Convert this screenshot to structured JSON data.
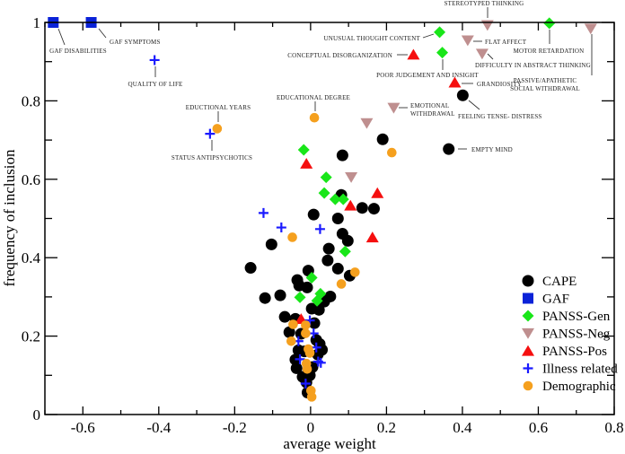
{
  "chart_data": {
    "type": "scatter",
    "xlabel": "average weight",
    "ylabel": "frequency of inclusion",
    "xlim": [
      -0.7,
      0.8
    ],
    "ylim": [
      0,
      1
    ],
    "xticks": [
      "-0.6",
      "-0.4",
      "-0.2",
      "0",
      "0.2",
      "0.4",
      "0.6",
      "0.8"
    ],
    "xtick_values": [
      -0.6,
      -0.4,
      -0.2,
      0,
      0.2,
      0.4,
      0.6,
      0.8
    ],
    "yticks": [
      "0",
      "0.2",
      "0.4",
      "0.6",
      "0.8",
      "1"
    ],
    "ytick_values": [
      0,
      0.2,
      0.4,
      0.6,
      0.8,
      1
    ],
    "grid": false,
    "legend_placement": "bottom-right",
    "series": [
      {
        "name": "CAPE",
        "marker": "circle",
        "color": "#000000",
        "points": [
          [
            0.401,
            0.814
          ],
          [
            0.364,
            0.677
          ],
          [
            0.19,
            0.702
          ],
          [
            0.084,
            0.661
          ],
          [
            0.081,
            0.56
          ],
          [
            0.136,
            0.527
          ],
          [
            0.167,
            0.525
          ],
          [
            0.008,
            0.51
          ],
          [
            0.072,
            0.5
          ],
          [
            -0.103,
            0.434
          ],
          [
            0.084,
            0.461
          ],
          [
            0.098,
            0.443
          ],
          [
            0.048,
            0.423
          ],
          [
            0.045,
            0.393
          ],
          [
            -0.158,
            0.374
          ],
          [
            0.072,
            0.372
          ],
          [
            0.103,
            0.354
          ],
          [
            -0.006,
            0.367
          ],
          [
            -0.035,
            0.343
          ],
          [
            -0.03,
            0.329
          ],
          [
            -0.009,
            0.324
          ],
          [
            -0.12,
            0.297
          ],
          [
            -0.08,
            0.304
          ],
          [
            0.052,
            0.301
          ],
          [
            0.036,
            0.288
          ],
          [
            0.022,
            0.267
          ],
          [
            0.003,
            0.27
          ],
          [
            -0.068,
            0.249
          ],
          [
            -0.04,
            0.244
          ],
          [
            0.01,
            0.233
          ],
          [
            -0.056,
            0.21
          ],
          [
            -0.025,
            0.206
          ],
          [
            0.024,
            0.18
          ],
          [
            -0.032,
            0.164
          ],
          [
            -0.016,
            0.161
          ],
          [
            0.019,
            0.153
          ],
          [
            -0.037,
            0.118
          ],
          [
            0.005,
            0.121
          ],
          [
            -0.021,
            0.096
          ],
          [
            -0.002,
            0.1
          ],
          [
            -0.011,
            0.082
          ],
          [
            -0.008,
            0.056
          ],
          [
            0.03,
            0.165
          ],
          [
            0.015,
            0.19
          ],
          [
            -0.04,
            0.14
          ]
        ]
      },
      {
        "name": "GAF",
        "marker": "square",
        "color": "#0a22d8",
        "points": [
          [
            -0.678,
            1.0
          ],
          [
            -0.578,
            1.0
          ]
        ]
      },
      {
        "name": "PANSS-Gen",
        "marker": "diamond",
        "color": "#19e619",
        "points": [
          [
            0.34,
            0.975
          ],
          [
            0.347,
            0.923
          ],
          [
            0.629,
            0.998
          ],
          [
            -0.018,
            0.675
          ],
          [
            0.041,
            0.605
          ],
          [
            0.036,
            0.565
          ],
          [
            0.065,
            0.549
          ],
          [
            0.086,
            0.549
          ],
          [
            0.091,
            0.416
          ],
          [
            0.003,
            0.349
          ],
          [
            -0.028,
            0.299
          ],
          [
            0.026,
            0.308
          ],
          [
            0.017,
            0.29
          ]
        ]
      },
      {
        "name": "PANSS-Neg",
        "marker": "triangle-down",
        "color": "#bf8f8f",
        "points": [
          [
            0.466,
            0.993
          ],
          [
            0.414,
            0.954
          ],
          [
            0.452,
            0.92
          ],
          [
            0.738,
            0.984
          ],
          [
            0.219,
            0.782
          ],
          [
            0.148,
            0.743
          ],
          [
            0.107,
            0.605
          ]
        ]
      },
      {
        "name": "PANSS-Pos",
        "marker": "triangle-up",
        "color": "#f50f0f",
        "points": [
          [
            0.271,
            0.918
          ],
          [
            0.38,
            0.847
          ],
          [
            -0.011,
            0.64
          ],
          [
            0.105,
            0.533
          ],
          [
            0.176,
            0.565
          ],
          [
            0.163,
            0.452
          ],
          [
            -0.025,
            0.244
          ]
        ]
      },
      {
        "name": "Illness related",
        "marker": "plus",
        "color": "#1a1aff",
        "points": [
          [
            -0.411,
            0.904
          ],
          [
            -0.265,
            0.716
          ],
          [
            -0.124,
            0.514
          ],
          [
            -0.077,
            0.477
          ],
          [
            0.025,
            0.473
          ],
          [
            -0.002,
            0.24
          ],
          [
            0.008,
            0.207
          ],
          [
            -0.032,
            0.187
          ],
          [
            0.015,
            0.171
          ],
          [
            -0.028,
            0.141
          ],
          [
            0.02,
            0.135
          ],
          [
            0.027,
            0.132
          ],
          [
            -0.013,
            0.079
          ]
        ]
      },
      {
        "name": "Demographic",
        "marker": "circle-small",
        "color": "#f5a01e",
        "points": [
          [
            -0.246,
            0.729
          ],
          [
            0.01,
            0.757
          ],
          [
            0.214,
            0.668
          ],
          [
            -0.048,
            0.452
          ],
          [
            0.117,
            0.363
          ],
          [
            0.081,
            0.333
          ],
          [
            -0.046,
            0.23
          ],
          [
            -0.013,
            0.228
          ],
          [
            -0.013,
            0.207
          ],
          [
            -0.051,
            0.187
          ],
          [
            -0.006,
            0.167
          ],
          [
            -0.002,
            0.157
          ],
          [
            -0.011,
            0.13
          ],
          [
            -0.009,
            0.116
          ],
          [
            0.001,
            0.061
          ],
          [
            0.003,
            0.045
          ]
        ]
      }
    ],
    "annotations": [
      {
        "text": "GAF DISABILITIES",
        "x": -0.678,
        "y": 1.0
      },
      {
        "text": "GAF SYMPTOMS",
        "x": -0.578,
        "y": 1.0
      },
      {
        "text": "QUALITY OF LIFE",
        "x": -0.411,
        "y": 0.904
      },
      {
        "text": "EDUCTIONAL YEARS",
        "x": -0.246,
        "y": 0.729
      },
      {
        "text": "STATUS ANTIPSYCHOTICS",
        "x": -0.265,
        "y": 0.716
      },
      {
        "text": "EDUCATIONAL DEGREE",
        "x": 0.01,
        "y": 0.757
      },
      {
        "text": "UNUSUAL THOUGHT CONTENT",
        "x": 0.34,
        "y": 0.975
      },
      {
        "text": "CONCEPTUAL DISORGANIZATION",
        "x": 0.271,
        "y": 0.918
      },
      {
        "text": "POOR JUDGEMENT AND INSIGHT",
        "x": 0.347,
        "y": 0.923
      },
      {
        "text": "STEREOTYPED THINKING",
        "x": 0.466,
        "y": 0.993
      },
      {
        "text": "FLAT AFFECT",
        "x": 0.414,
        "y": 0.954
      },
      {
        "text": "DIFFICULTY IN ABSTRACT THINKING",
        "x": 0.452,
        "y": 0.92
      },
      {
        "text": "MOTOR RETARDATION",
        "x": 0.629,
        "y": 0.998
      },
      {
        "text": "PASSIVE/APATHETIC",
        "text2": "SOCIAL WITHDRAWAL",
        "x": 0.738,
        "y": 0.984
      },
      {
        "text": "GRANDIOSITY",
        "x": 0.38,
        "y": 0.847
      },
      {
        "text": "FEELING TENSE- DISTRESS",
        "x": 0.401,
        "y": 0.814
      },
      {
        "text": "EMOTIONAL",
        "text2": "WITHDRAWAL",
        "x": 0.219,
        "y": 0.782
      },
      {
        "text": "EMPTY MIND",
        "x": 0.364,
        "y": 0.677
      }
    ]
  }
}
